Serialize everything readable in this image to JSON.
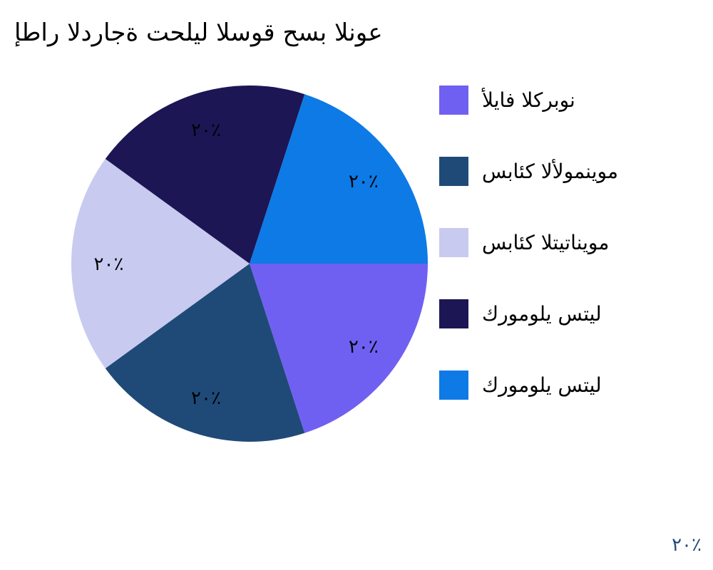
{
  "chart_data": {
    "type": "pie",
    "title": "إطار الدراجة تحليل السوق حسب النوع",
    "categories": [
      "ألياف الكربون",
      "سبائك الألومنيوم",
      "سبائك التيتانيوم",
      "كرومولي ستيل",
      "كرومولي ستيل"
    ],
    "values": [
      20,
      20,
      20,
      20,
      20
    ],
    "data_labels": [
      "٢٠٪",
      "٢٠٪",
      "٢٠٪",
      "٢٠٪",
      "٢٠٪"
    ],
    "colors": [
      "#7060f2",
      "#1f4a78",
      "#c9caf0",
      "#1c1655",
      "#0d7ae6"
    ],
    "start_angle": "3 o'clock",
    "direction": "clockwise",
    "legend_placement": "right"
  },
  "watermark": "٢٠٪"
}
